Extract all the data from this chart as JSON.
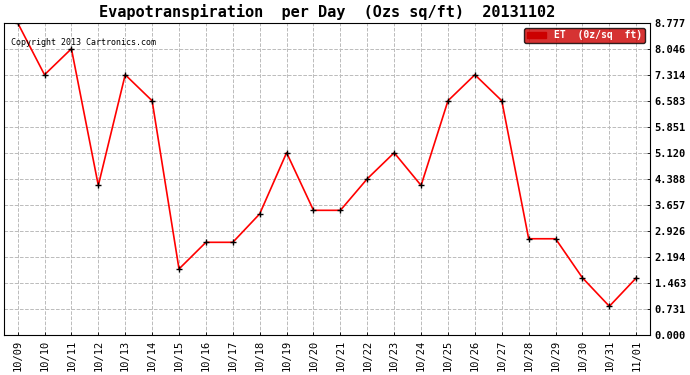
{
  "title": "Evapotranspiration  per Day  (Ozs sq/ft)  20131102",
  "copyright_text": "Copyright 2013 Cartronics.com",
  "legend_label": "ET  (0z/sq  ft)",
  "x_labels": [
    "10/09",
    "10/10",
    "10/11",
    "10/12",
    "10/13",
    "10/14",
    "10/15",
    "10/16",
    "10/17",
    "10/18",
    "10/19",
    "10/20",
    "10/21",
    "10/22",
    "10/23",
    "10/24",
    "10/25",
    "10/26",
    "10/27",
    "10/28",
    "10/29",
    "10/30",
    "10/31",
    "11/01"
  ],
  "y_values": [
    8.777,
    7.314,
    8.046,
    4.2,
    7.314,
    6.583,
    1.85,
    2.6,
    2.6,
    3.4,
    5.12,
    3.5,
    3.5,
    4.388,
    5.12,
    4.2,
    6.583,
    7.314,
    6.583,
    2.7,
    2.7,
    1.6,
    0.8,
    1.6
  ],
  "line_color": "#ff0000",
  "marker_color": "#000000",
  "marker_style": "+",
  "marker_size": 5,
  "line_width": 1.2,
  "y_ticks": [
    0.0,
    0.731,
    1.463,
    2.194,
    2.926,
    3.657,
    4.388,
    5.12,
    5.851,
    6.583,
    7.314,
    8.046,
    8.777
  ],
  "ylim": [
    0.0,
    8.777
  ],
  "background_color": "#ffffff",
  "grid_color": "#bbbbbb",
  "title_fontsize": 11,
  "tick_fontsize": 7.5,
  "copyright_fontsize": 6,
  "legend_bg": "#cc0000",
  "legend_text_color": "#ffffff"
}
